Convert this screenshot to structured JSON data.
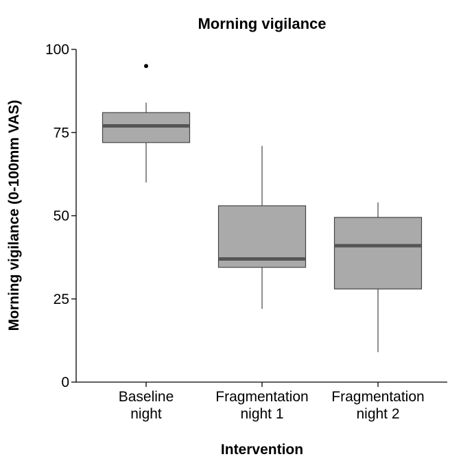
{
  "chart_data": {
    "type": "box",
    "title": "Morning vigilance",
    "xlabel": "Intervention",
    "ylabel": "Morning vigilance (0-100mm VAS)",
    "ylim": [
      0,
      100
    ],
    "yticks": [
      0,
      25,
      50,
      75,
      100
    ],
    "grid": false,
    "categories": [
      {
        "lines": [
          "Baseline",
          "night"
        ]
      },
      {
        "lines": [
          "Fragmentation",
          "night 1"
        ]
      },
      {
        "lines": [
          "Fragmentation",
          "night 2"
        ]
      }
    ],
    "boxes": [
      {
        "whisker_low": 60,
        "q1": 72,
        "median": 77,
        "q3": 81,
        "whisker_high": 84,
        "outliers": [
          95
        ]
      },
      {
        "whisker_low": 22,
        "q1": 34.5,
        "median": 37,
        "q3": 53,
        "whisker_high": 71,
        "outliers": []
      },
      {
        "whisker_low": 9,
        "q1": 28,
        "median": 41,
        "q3": 49.5,
        "whisker_high": 54,
        "outliers": []
      }
    ],
    "colors": {
      "box_fill": "#aaaaaa",
      "box_stroke": "#444444",
      "median": "#555555",
      "axis": "#000000"
    }
  }
}
